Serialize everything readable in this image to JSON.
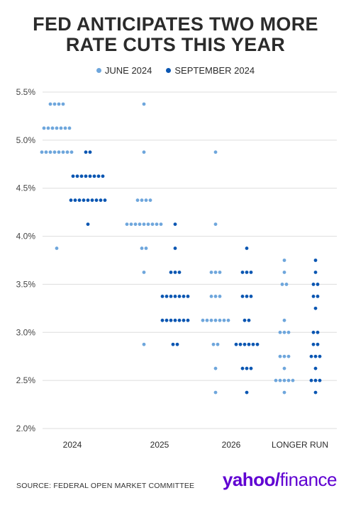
{
  "header": {
    "title_line1": "FED ANTICIPATES TWO MORE",
    "title_line2": "RATE CUTS THIS YEAR"
  },
  "colors": {
    "june": "#6ea6dc",
    "september": "#0a56b2",
    "gridline": "#dddddd"
  },
  "chart_data": {
    "type": "scatter",
    "title": "FED ANTICIPATES TWO MORE RATE CUTS THIS YEAR",
    "xlabel": "",
    "ylabel": "",
    "ylim": [
      2.0,
      5.5
    ],
    "y_ticks": [
      "5.5%",
      "5.0%",
      "4.5%",
      "4.0%",
      "3.5%",
      "3.0%",
      "2.5%",
      "2.0%"
    ],
    "grid": true,
    "legend_position": "top-center",
    "categories": [
      "2024",
      "2025",
      "2026",
      "LONGER RUN"
    ],
    "series": [
      {
        "name": "JUNE 2024",
        "color": "#6ea6dc",
        "dots": [
          [
            {
              "rate": 5.375,
              "count": 4
            },
            {
              "rate": 5.125,
              "count": 7
            },
            {
              "rate": 4.875,
              "count": 8
            },
            {
              "rate": 3.875,
              "count": 1
            }
          ],
          [
            {
              "rate": 5.375,
              "count": 1
            },
            {
              "rate": 4.875,
              "count": 1
            },
            {
              "rate": 4.375,
              "count": 4
            },
            {
              "rate": 4.125,
              "count": 9
            },
            {
              "rate": 3.875,
              "count": 2
            },
            {
              "rate": 3.625,
              "count": 1
            },
            {
              "rate": 2.875,
              "count": 1
            }
          ],
          [
            {
              "rate": 4.875,
              "count": 1
            },
            {
              "rate": 4.125,
              "count": 1
            },
            {
              "rate": 3.625,
              "count": 3
            },
            {
              "rate": 3.375,
              "count": 3
            },
            {
              "rate": 3.125,
              "count": 7
            },
            {
              "rate": 2.875,
              "count": 2
            },
            {
              "rate": 2.625,
              "count": 1
            },
            {
              "rate": 2.375,
              "count": 1
            }
          ],
          [
            {
              "rate": 3.75,
              "count": 1
            },
            {
              "rate": 3.625,
              "count": 1
            },
            {
              "rate": 3.5,
              "count": 2
            },
            {
              "rate": 3.125,
              "count": 1
            },
            {
              "rate": 3.0,
              "count": 3
            },
            {
              "rate": 2.75,
              "count": 3
            },
            {
              "rate": 2.625,
              "count": 1
            },
            {
              "rate": 2.5,
              "count": 5
            },
            {
              "rate": 2.375,
              "count": 1
            }
          ]
        ]
      },
      {
        "name": "SEPTEMBER 2024",
        "color": "#0a56b2",
        "dots": [
          [
            {
              "rate": 4.875,
              "count": 2
            },
            {
              "rate": 4.625,
              "count": 8
            },
            {
              "rate": 4.375,
              "count": 9
            },
            {
              "rate": 4.125,
              "count": 1
            }
          ],
          [
            {
              "rate": 4.125,
              "count": 1
            },
            {
              "rate": 3.875,
              "count": 1
            },
            {
              "rate": 3.625,
              "count": 3
            },
            {
              "rate": 3.375,
              "count": 7
            },
            {
              "rate": 3.125,
              "count": 7
            },
            {
              "rate": 2.875,
              "count": 2
            }
          ],
          [
            {
              "rate": 3.875,
              "count": 1
            },
            {
              "rate": 3.625,
              "count": 3
            },
            {
              "rate": 3.375,
              "count": 3
            },
            {
              "rate": 3.125,
              "count": 2
            },
            {
              "rate": 2.875,
              "count": 6
            },
            {
              "rate": 2.625,
              "count": 3
            },
            {
              "rate": 2.375,
              "count": 1
            }
          ],
          [
            {
              "rate": 3.75,
              "count": 1
            },
            {
              "rate": 3.625,
              "count": 1
            },
            {
              "rate": 3.5,
              "count": 2
            },
            {
              "rate": 3.375,
              "count": 2
            },
            {
              "rate": 3.25,
              "count": 1
            },
            {
              "rate": 3.0,
              "count": 2
            },
            {
              "rate": 2.875,
              "count": 2
            },
            {
              "rate": 2.75,
              "count": 3
            },
            {
              "rate": 2.625,
              "count": 1
            },
            {
              "rate": 2.5,
              "count": 3
            },
            {
              "rate": 2.375,
              "count": 1
            }
          ]
        ]
      }
    ]
  },
  "legend": {
    "june_label": "JUNE 2024",
    "september_label": "SEPTEMBER 2024"
  },
  "footer": {
    "source": "SOURCE: FEDERAL OPEN MARKET COMMITTEE",
    "logo_brand": "yahoo/",
    "logo_product": "finance"
  }
}
